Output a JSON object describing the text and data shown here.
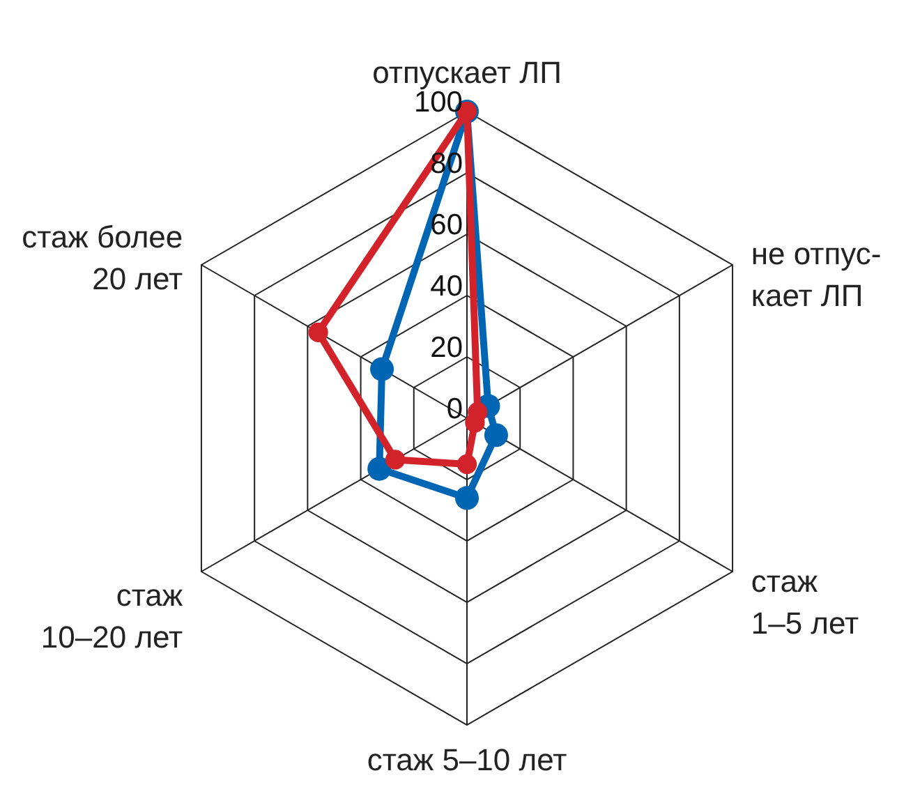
{
  "chart_data": {
    "type": "radar",
    "categories": [
      "отпускает ЛП",
      "не отпус-\nкает ЛП",
      "стаж\n1–5 лет",
      "стаж 5–10 лет",
      "стаж\n10–20 лет",
      "стаж более\n20 лет"
    ],
    "series": [
      {
        "color": "#0066b3",
        "values": [
          100,
          8,
          11,
          26,
          33,
          32
        ]
      },
      {
        "color": "#d2232a",
        "values": [
          100,
          4,
          3,
          15,
          27,
          56
        ]
      }
    ],
    "ylim": [
      0,
      100
    ],
    "yticks": [
      0,
      20,
      40,
      60,
      80,
      100
    ],
    "grid": true,
    "marker": "circle",
    "line_style": "solid"
  }
}
